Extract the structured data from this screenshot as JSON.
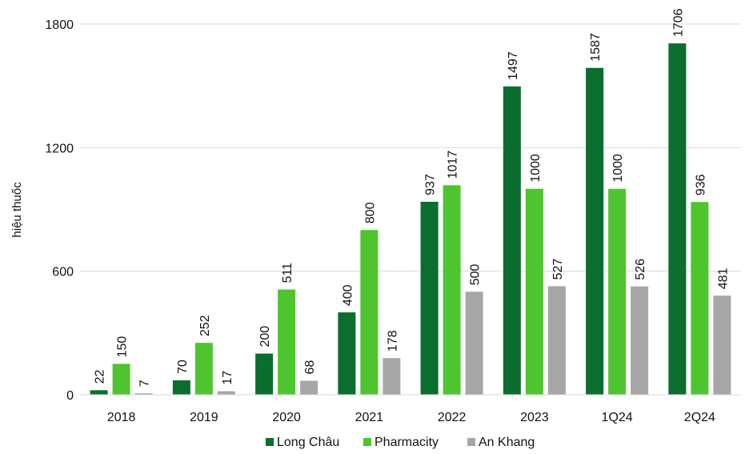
{
  "chart_data": {
    "type": "bar",
    "title": "",
    "xlabel": "",
    "ylabel": "hiệu thuốc",
    "categories": [
      "2018",
      "2019",
      "2020",
      "2021",
      "2022",
      "2023",
      "1Q24",
      "2Q24"
    ],
    "series": [
      {
        "name": "Long Châu",
        "color": "#0b6e2e",
        "values": [
          22,
          70,
          200,
          400,
          937,
          1497,
          1587,
          1706
        ]
      },
      {
        "name": "Pharmacity",
        "color": "#4ec52f",
        "values": [
          150,
          252,
          511,
          800,
          1017,
          1000,
          1000,
          936
        ]
      },
      {
        "name": "An Khang",
        "color": "#a6a6a6",
        "values": [
          7,
          17,
          68,
          178,
          500,
          527,
          526,
          481
        ]
      }
    ],
    "ylim": [
      0,
      1800
    ],
    "yticks": [
      0,
      600,
      1200,
      1800
    ],
    "grid": true,
    "legend_position": "bottom"
  }
}
